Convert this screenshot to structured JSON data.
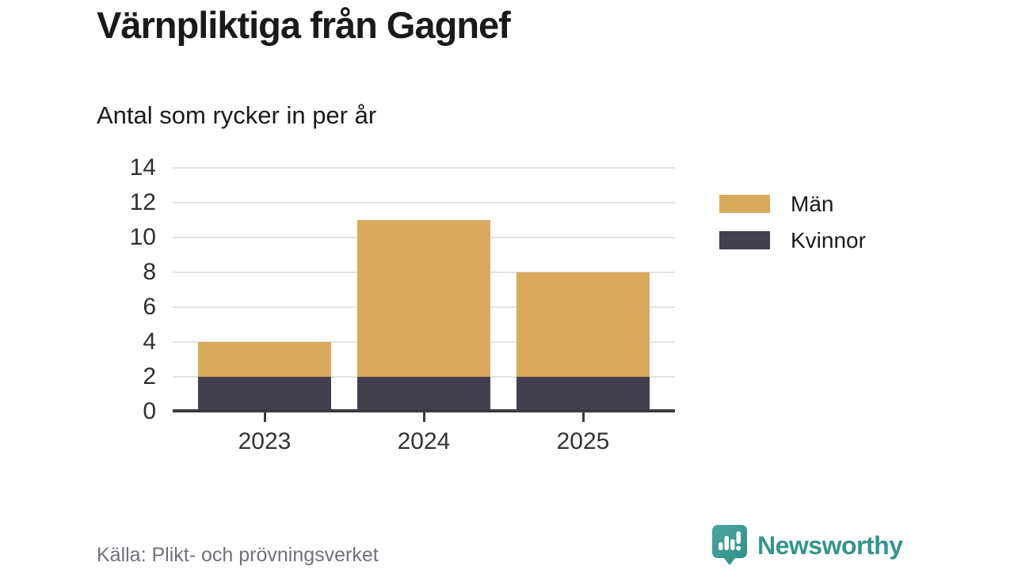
{
  "header": {
    "title": "Värnpliktiga från Gagnef",
    "subtitle": "Antal som rycker in per år"
  },
  "chart_data": {
    "type": "bar",
    "stacked": true,
    "categories": [
      "2023",
      "2024",
      "2025"
    ],
    "series": [
      {
        "name": "Män",
        "color": "#d9a95c",
        "values": [
          2,
          9,
          6
        ]
      },
      {
        "name": "Kvinnor",
        "color": "#434050",
        "values": [
          2,
          2,
          2
        ]
      }
    ],
    "stack_order_bottom_to_top": [
      "Kvinnor",
      "Män"
    ],
    "totals": [
      4,
      11,
      8
    ],
    "title": "Värnpliktiga från Gagnef",
    "subtitle": "Antal som rycker in per år",
    "xlabel": "",
    "ylabel": "",
    "ylim": [
      0,
      14
    ],
    "yticks": [
      0,
      2,
      4,
      6,
      8,
      10,
      12,
      14
    ],
    "grid": true,
    "legend_position": "right",
    "grid_color": "#e2e2e2",
    "axis_color": "#3b3b40"
  },
  "footer": {
    "source": "Källa: Plikt- och prövningsverket",
    "brand": "Newsworthy",
    "brand_color": "#35948d",
    "logo_icon": "speech-bubble-bar-chart-icon"
  }
}
